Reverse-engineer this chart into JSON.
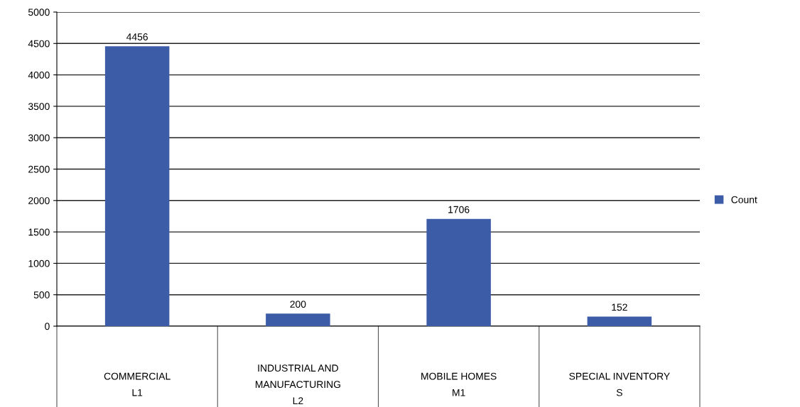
{
  "chart_data": {
    "type": "bar",
    "categories": [
      "COMMERCIAL\nL1",
      "INDUSTRIAL AND\nMANUFACTURING\nL2",
      "MOBILE HOMES\nM1",
      "SPECIAL INVENTORY\nS"
    ],
    "series": [
      {
        "name": "Count",
        "color": "#3d5ca8",
        "values": [
          4456,
          200,
          1706,
          152
        ]
      }
    ],
    "ylim": [
      0,
      5000
    ],
    "yticks": [
      0,
      500,
      1000,
      1500,
      2000,
      2500,
      3000,
      3500,
      4000,
      4500,
      5000
    ],
    "grid": "y",
    "legend": "right",
    "data_labels": true
  }
}
